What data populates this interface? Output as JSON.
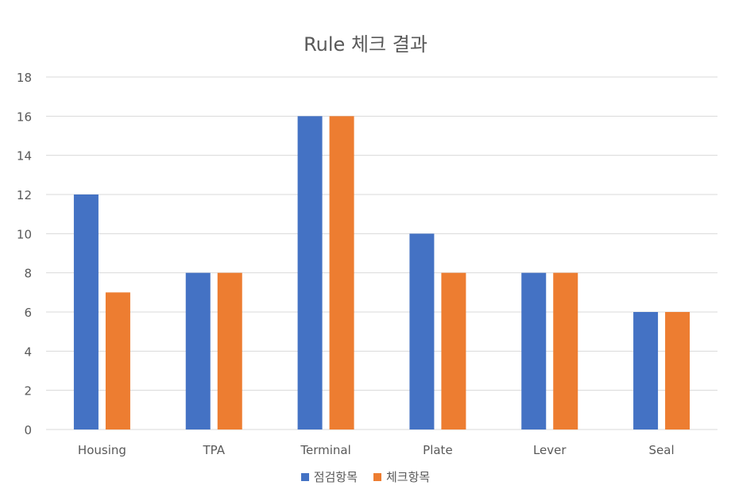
{
  "chart_data": {
    "type": "bar",
    "title": "Rule 체크 결과",
    "xlabel": "",
    "ylabel": "",
    "categories": [
      "Housing",
      "TPA",
      "Terminal",
      "Plate",
      "Lever",
      "Seal"
    ],
    "series": [
      {
        "name": "점검항목",
        "color": "#4472C4",
        "values": [
          12,
          8,
          16,
          10,
          8,
          6
        ]
      },
      {
        "name": "체크항목",
        "color": "#ED7D31",
        "values": [
          7,
          8,
          16,
          8,
          8,
          6
        ]
      }
    ],
    "ylim": [
      0,
      18
    ],
    "yticks": [
      0,
      2,
      4,
      6,
      8,
      10,
      12,
      14,
      16,
      18
    ],
    "grid": true,
    "legend_position": "bottom"
  }
}
